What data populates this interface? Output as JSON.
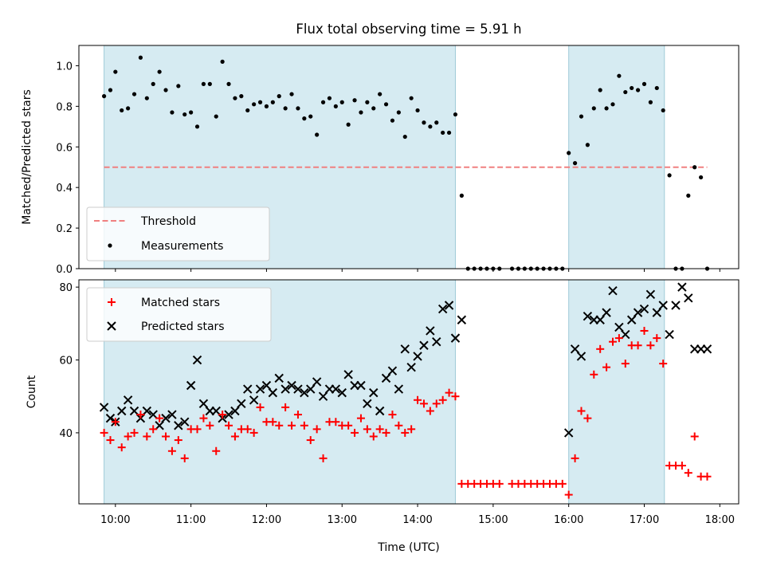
{
  "chart_data": [
    {
      "type": "scatter",
      "title": "Flux total observing time = 5.91 h",
      "xlabel": "",
      "ylabel": "Matched/Predicted stars",
      "xlim": [
        "09:31",
        "18:15"
      ],
      "ylim": [
        0,
        1.1
      ],
      "yticks": [
        "0.0",
        "0.2",
        "0.4",
        "0.6",
        "0.8",
        "1.0"
      ],
      "grid": false,
      "legend_position": "lower-left",
      "shaded_intervals": [
        [
          "09:51",
          "14:30"
        ],
        [
          "16:00",
          "17:16"
        ]
      ],
      "threshold": {
        "name": "Threshold",
        "y": 0.5,
        "x_range": [
          "09:51",
          "17:50"
        ],
        "color": "#f08080",
        "style": "dashed"
      },
      "series": [
        {
          "name": "Measurements",
          "color": "#000000",
          "marker": "dot",
          "x": [
            "09:51",
            "09:56",
            "10:00",
            "10:05",
            "10:10",
            "10:15",
            "10:20",
            "10:25",
            "10:30",
            "10:35",
            "10:40",
            "10:45",
            "10:50",
            "10:55",
            "11:00",
            "11:05",
            "11:10",
            "11:15",
            "11:20",
            "11:25",
            "11:30",
            "11:35",
            "11:40",
            "11:45",
            "11:50",
            "11:55",
            "12:00",
            "12:05",
            "12:10",
            "12:15",
            "12:20",
            "12:25",
            "12:30",
            "12:35",
            "12:40",
            "12:45",
            "12:50",
            "12:55",
            "13:00",
            "13:05",
            "13:10",
            "13:15",
            "13:20",
            "13:25",
            "13:30",
            "13:35",
            "13:40",
            "13:45",
            "13:50",
            "13:55",
            "14:00",
            "14:05",
            "14:10",
            "14:15",
            "14:20",
            "14:25",
            "14:30",
            "14:35",
            "14:40",
            "14:45",
            "14:50",
            "14:55",
            "15:00",
            "15:05",
            "15:15",
            "15:20",
            "15:25",
            "15:30",
            "15:35",
            "15:40",
            "15:45",
            "15:50",
            "15:55",
            "16:00",
            "16:05",
            "16:10",
            "16:15",
            "16:20",
            "16:25",
            "16:30",
            "16:35",
            "16:40",
            "16:45",
            "16:50",
            "16:55",
            "17:00",
            "17:05",
            "17:10",
            "17:15",
            "17:20",
            "17:25",
            "17:30",
            "17:35",
            "17:40",
            "17:45",
            "17:50"
          ],
          "y": [
            0.85,
            0.88,
            0.97,
            0.78,
            0.79,
            0.86,
            1.04,
            0.84,
            0.91,
            0.97,
            0.88,
            0.77,
            0.9,
            0.76,
            0.77,
            0.7,
            0.91,
            0.91,
            0.75,
            1.02,
            0.91,
            0.84,
            0.85,
            0.78,
            0.81,
            0.82,
            0.8,
            0.82,
            0.85,
            0.79,
            0.86,
            0.79,
            0.74,
            0.75,
            0.66,
            0.82,
            0.84,
            0.8,
            0.82,
            0.71,
            0.83,
            0.77,
            0.82,
            0.79,
            0.86,
            0.81,
            0.73,
            0.77,
            0.65,
            0.84,
            0.78,
            0.72,
            0.7,
            0.72,
            0.67,
            0.67,
            0.76,
            0.36,
            0,
            0,
            0,
            0,
            0,
            0,
            0,
            0,
            0,
            0,
            0,
            0,
            0,
            0,
            0,
            0.57,
            0.52,
            0.75,
            0.61,
            0.79,
            0.88,
            0.79,
            0.81,
            0.95,
            0.87,
            0.89,
            0.88,
            0.91,
            0.82,
            0.89,
            0.78,
            0.46,
            0,
            0,
            0.36,
            0.5,
            0.45,
            0
          ]
        }
      ]
    },
    {
      "type": "scatter",
      "xlabel": "Time (UTC)",
      "ylabel": "Count",
      "xlim": [
        "09:31",
        "18:15"
      ],
      "ylim": [
        20.5,
        82
      ],
      "xticks": [
        "10:00",
        "11:00",
        "12:00",
        "13:00",
        "14:00",
        "15:00",
        "16:00",
        "17:00",
        "18:00"
      ],
      "yticks": [
        "40",
        "60",
        "80"
      ],
      "grid": false,
      "legend_position": "upper-left",
      "shaded_intervals": [
        [
          "09:51",
          "14:30"
        ],
        [
          "16:00",
          "17:16"
        ]
      ],
      "series": [
        {
          "name": "Matched stars",
          "color": "#ff0000",
          "marker": "plus",
          "x": [
            "09:51",
            "09:56",
            "10:00",
            "10:05",
            "10:10",
            "10:15",
            "10:20",
            "10:25",
            "10:30",
            "10:35",
            "10:40",
            "10:45",
            "10:50",
            "10:55",
            "11:00",
            "11:05",
            "11:10",
            "11:15",
            "11:20",
            "11:25",
            "11:30",
            "11:35",
            "11:40",
            "11:45",
            "11:50",
            "11:55",
            "12:00",
            "12:05",
            "12:10",
            "12:15",
            "12:20",
            "12:25",
            "12:30",
            "12:35",
            "12:40",
            "12:45",
            "12:50",
            "12:55",
            "13:00",
            "13:05",
            "13:10",
            "13:15",
            "13:20",
            "13:25",
            "13:30",
            "13:35",
            "13:40",
            "13:45",
            "13:50",
            "13:55",
            "14:00",
            "14:05",
            "14:10",
            "14:15",
            "14:20",
            "14:25",
            "14:30",
            "14:35",
            "14:40",
            "14:45",
            "14:50",
            "14:55",
            "15:00",
            "15:05",
            "15:15",
            "15:20",
            "15:25",
            "15:30",
            "15:35",
            "15:40",
            "15:45",
            "15:50",
            "15:55",
            "16:00",
            "16:05",
            "16:10",
            "16:15",
            "16:20",
            "16:25",
            "16:30",
            "16:35",
            "16:40",
            "16:45",
            "16:50",
            "16:55",
            "17:00",
            "17:05",
            "17:10",
            "17:15",
            "17:20",
            "17:25",
            "17:30",
            "17:35",
            "17:40",
            "17:45",
            "17:50"
          ],
          "y": [
            40,
            38,
            43,
            36,
            39,
            40,
            45,
            39,
            41,
            44,
            39,
            35,
            38,
            33,
            41,
            41,
            44,
            42,
            35,
            45,
            42,
            39,
            41,
            41,
            40,
            47,
            43,
            43,
            42,
            47,
            42,
            45,
            42,
            38,
            41,
            33,
            43,
            43,
            42,
            42,
            40,
            44,
            41,
            39,
            41,
            40,
            45,
            42,
            40,
            41,
            49,
            48,
            46,
            48,
            49,
            51,
            50,
            26,
            26,
            26,
            26,
            26,
            26,
            26,
            26,
            26,
            26,
            26,
            26,
            26,
            26,
            26,
            26,
            23,
            33,
            46,
            44,
            56,
            63,
            58,
            65,
            66,
            59,
            64,
            64,
            68,
            64,
            66,
            59,
            31,
            31,
            31,
            29,
            39,
            28,
            28
          ]
        },
        {
          "name": "Predicted stars",
          "color": "#000000",
          "marker": "x",
          "x": [
            "09:51",
            "09:56",
            "10:00",
            "10:05",
            "10:10",
            "10:15",
            "10:20",
            "10:25",
            "10:30",
            "10:35",
            "10:40",
            "10:45",
            "10:50",
            "10:55",
            "11:00",
            "11:05",
            "11:10",
            "11:15",
            "11:20",
            "11:25",
            "11:30",
            "11:35",
            "11:40",
            "11:45",
            "11:50",
            "11:55",
            "12:00",
            "12:05",
            "12:10",
            "12:15",
            "12:20",
            "12:25",
            "12:30",
            "12:35",
            "12:40",
            "12:45",
            "12:50",
            "12:55",
            "13:00",
            "13:05",
            "13:10",
            "13:15",
            "13:20",
            "13:25",
            "13:30",
            "13:35",
            "13:40",
            "13:45",
            "13:50",
            "13:55",
            "14:00",
            "14:05",
            "14:10",
            "14:15",
            "14:20",
            "14:25",
            "14:30",
            "14:35",
            "16:00",
            "16:05",
            "16:10",
            "16:15",
            "16:20",
            "16:25",
            "16:30",
            "16:35",
            "16:40",
            "16:45",
            "16:50",
            "16:55",
            "17:00",
            "17:05",
            "17:10",
            "17:15",
            "17:20",
            "17:25",
            "17:30",
            "17:35",
            "17:40",
            "17:45",
            "17:50"
          ],
          "y": [
            47,
            44,
            43,
            46,
            49,
            46,
            44,
            46,
            45,
            42,
            44,
            45,
            42,
            43,
            53,
            60,
            48,
            46,
            46,
            44,
            45,
            46,
            48,
            52,
            49,
            52,
            53,
            51,
            55,
            52,
            53,
            52,
            51,
            52,
            54,
            50,
            52,
            52,
            51,
            56,
            53,
            53,
            48,
            51,
            46,
            55,
            57,
            52,
            63,
            58,
            61,
            64,
            68,
            65,
            74,
            75,
            66,
            71,
            40,
            63,
            61,
            72,
            71,
            71,
            73,
            79,
            69,
            67,
            71,
            73,
            74,
            78,
            73,
            75,
            67,
            75,
            80,
            77,
            63,
            63,
            63
          ]
        }
      ]
    }
  ]
}
